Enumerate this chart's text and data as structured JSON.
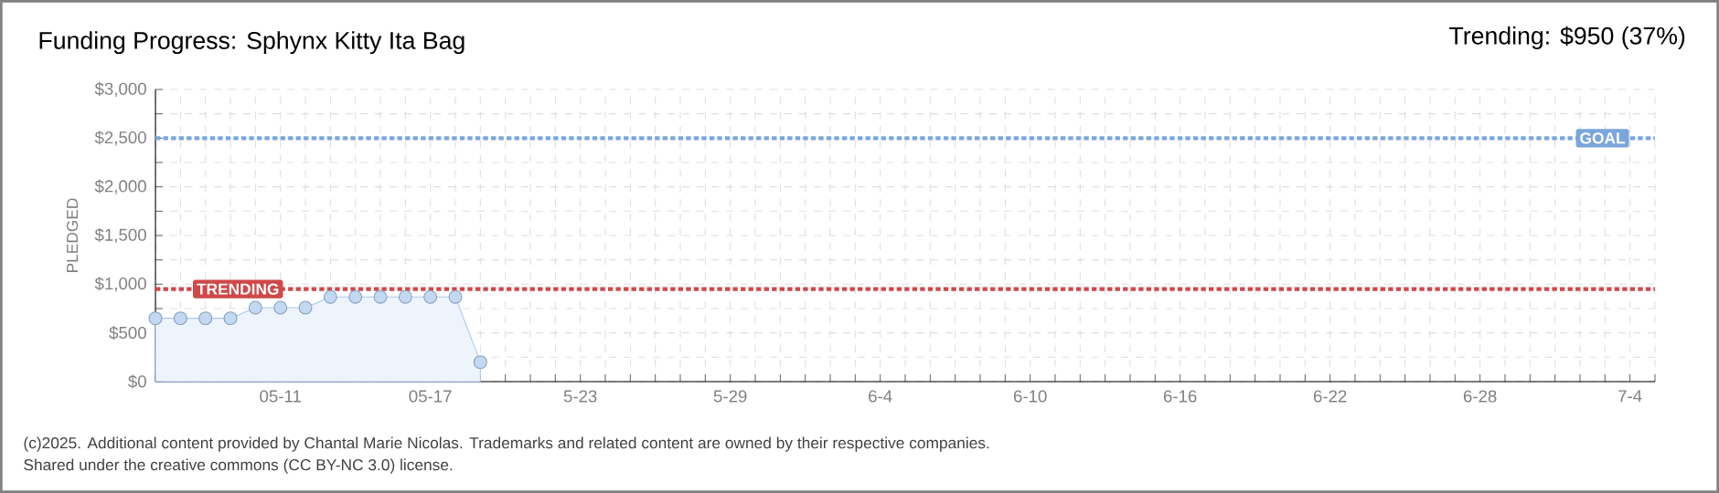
{
  "chart_data": {
    "type": "area",
    "title": "Funding Progress: Sphynx Kitty Ita Bag",
    "subtitle": "Trending: $950 (37%)",
    "ylabel": "PLEDGED",
    "x": [
      "2025-05-06",
      "2025-05-07",
      "2025-05-08",
      "2025-05-09",
      "2025-05-10",
      "2025-05-11",
      "2025-05-12",
      "2025-05-13",
      "2025-05-14",
      "2025-05-15",
      "2025-05-16",
      "2025-05-17",
      "2025-05-18",
      "2025-05-19"
    ],
    "values": [
      650,
      650,
      650,
      650,
      760,
      760,
      760,
      870,
      870,
      870,
      870,
      870,
      870,
      200
    ],
    "color": "#a9c8ec",
    "marker": "circle",
    "grid": true,
    "xlim": [
      "2025-05-06",
      "2025-07-05"
    ],
    "ylim": [
      0,
      3000
    ],
    "yticks": [
      {
        "value": 0,
        "label": "$0"
      },
      {
        "value": 250,
        "label": null
      },
      {
        "value": 500,
        "label": "$500"
      },
      {
        "value": 750,
        "label": null
      },
      {
        "value": 1000,
        "label": "$1,000"
      },
      {
        "value": 1250,
        "label": null
      },
      {
        "value": 1500,
        "label": "$1,500"
      },
      {
        "value": 1750,
        "label": null
      },
      {
        "value": 2000,
        "label": "$2,000"
      },
      {
        "value": 2250,
        "label": null
      },
      {
        "value": 2500,
        "label": "$2,500"
      },
      {
        "value": 2750,
        "label": null
      },
      {
        "value": 3000,
        "label": "$3,000"
      }
    ],
    "xticks": [
      {
        "value": "2025-05-06",
        "label": null
      },
      {
        "value": "2025-05-07",
        "label": null
      },
      {
        "value": "2025-05-08",
        "label": null
      },
      {
        "value": "2025-05-09",
        "label": null
      },
      {
        "value": "2025-05-10",
        "label": null
      },
      {
        "value": "2025-05-11",
        "label": "05-11"
      },
      {
        "value": "2025-05-12",
        "label": null
      },
      {
        "value": "2025-05-13",
        "label": null
      },
      {
        "value": "2025-05-14",
        "label": null
      },
      {
        "value": "2025-05-15",
        "label": null
      },
      {
        "value": "2025-05-16",
        "label": null
      },
      {
        "value": "2025-05-17",
        "label": "05-17"
      },
      {
        "value": "2025-05-18",
        "label": null
      },
      {
        "value": "2025-05-19",
        "label": null
      },
      {
        "value": "2025-05-20",
        "label": null
      },
      {
        "value": "2025-05-21",
        "label": null
      },
      {
        "value": "2025-05-22",
        "label": null
      },
      {
        "value": "2025-05-23",
        "label": "5-23"
      },
      {
        "value": "2025-05-24",
        "label": null
      },
      {
        "value": "2025-05-25",
        "label": null
      },
      {
        "value": "2025-05-26",
        "label": null
      },
      {
        "value": "2025-05-27",
        "label": null
      },
      {
        "value": "2025-05-28",
        "label": null
      },
      {
        "value": "2025-05-29",
        "label": "5-29"
      },
      {
        "value": "2025-05-30",
        "label": null
      },
      {
        "value": "2025-05-31",
        "label": null
      },
      {
        "value": "2025-06-01",
        "label": null
      },
      {
        "value": "2025-06-02",
        "label": null
      },
      {
        "value": "2025-06-03",
        "label": null
      },
      {
        "value": "2025-06-04",
        "label": "6-4"
      },
      {
        "value": "2025-06-05",
        "label": null
      },
      {
        "value": "2025-06-06",
        "label": null
      },
      {
        "value": "2025-06-07",
        "label": null
      },
      {
        "value": "2025-06-08",
        "label": null
      },
      {
        "value": "2025-06-09",
        "label": null
      },
      {
        "value": "2025-06-10",
        "label": "6-10"
      },
      {
        "value": "2025-06-11",
        "label": null
      },
      {
        "value": "2025-06-12",
        "label": null
      },
      {
        "value": "2025-06-13",
        "label": null
      },
      {
        "value": "2025-06-14",
        "label": null
      },
      {
        "value": "2025-06-15",
        "label": null
      },
      {
        "value": "2025-06-16",
        "label": "6-16"
      },
      {
        "value": "2025-06-17",
        "label": null
      },
      {
        "value": "2025-06-18",
        "label": null
      },
      {
        "value": "2025-06-19",
        "label": null
      },
      {
        "value": "2025-06-20",
        "label": null
      },
      {
        "value": "2025-06-21",
        "label": null
      },
      {
        "value": "2025-06-22",
        "label": "6-22"
      },
      {
        "value": "2025-06-23",
        "label": null
      },
      {
        "value": "2025-06-24",
        "label": null
      },
      {
        "value": "2025-06-25",
        "label": null
      },
      {
        "value": "2025-06-26",
        "label": null
      },
      {
        "value": "2025-06-27",
        "label": null
      },
      {
        "value": "2025-06-28",
        "label": "6-28"
      },
      {
        "value": "2025-06-29",
        "label": null
      },
      {
        "value": "2025-06-30",
        "label": null
      },
      {
        "value": "2025-07-01",
        "label": null
      },
      {
        "value": "2025-07-02",
        "label": null
      },
      {
        "value": "2025-07-03",
        "label": null
      },
      {
        "value": "2025-07-04",
        "label": "7-4"
      },
      {
        "value": "2025-07-05",
        "label": null
      }
    ],
    "ref_lines": [
      {
        "axis": "y",
        "value": 2500,
        "label": "GOAL",
        "color": "#7aa6dc",
        "line_style": "dotted"
      },
      {
        "axis": "y",
        "value": 950,
        "label": "TRENDING",
        "color": "#d04848",
        "line_style": "dotted"
      }
    ],
    "annotations": [
      "(c)2025. Additional content provided by Chantal Marie Nicolas. Trademarks and related content are owned by their respective companies.",
      "Shared under the creative commons (CC BY-NC 3.0) license."
    ]
  }
}
